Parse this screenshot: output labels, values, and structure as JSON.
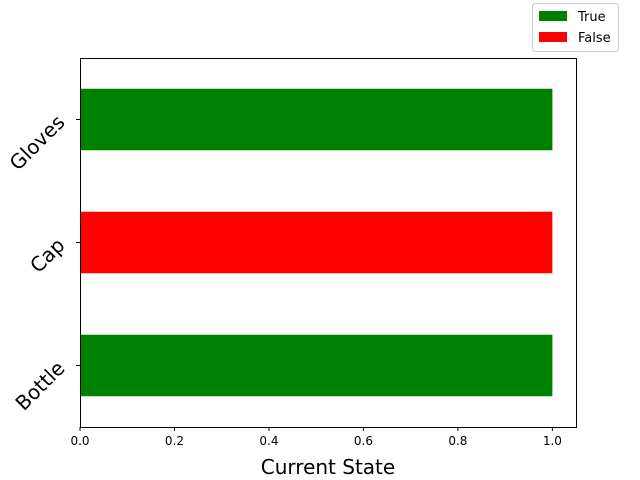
{
  "chart_data": {
    "type": "bar",
    "orientation": "horizontal",
    "categories": [
      "Bottle",
      "Cap",
      "Gloves"
    ],
    "values": [
      1.0,
      1.0,
      1.0
    ],
    "states": [
      "True",
      "False",
      "True"
    ],
    "xlabel": "Current State",
    "ylabel": "",
    "title": "",
    "xlim": [
      0,
      1.05
    ],
    "xticks": [
      0.0,
      0.2,
      0.4,
      0.6,
      0.8,
      1.0
    ],
    "xtick_labels": [
      "0.0",
      "0.2",
      "0.4",
      "0.6",
      "0.8",
      "1.0"
    ],
    "grid": false,
    "legend": {
      "placement": "top-right",
      "entries": [
        {
          "label": "True",
          "color": "#008000"
        },
        {
          "label": "False",
          "color": "#ff0000"
        }
      ]
    },
    "colors": {
      "True": "#008000",
      "False": "#ff0000"
    }
  }
}
